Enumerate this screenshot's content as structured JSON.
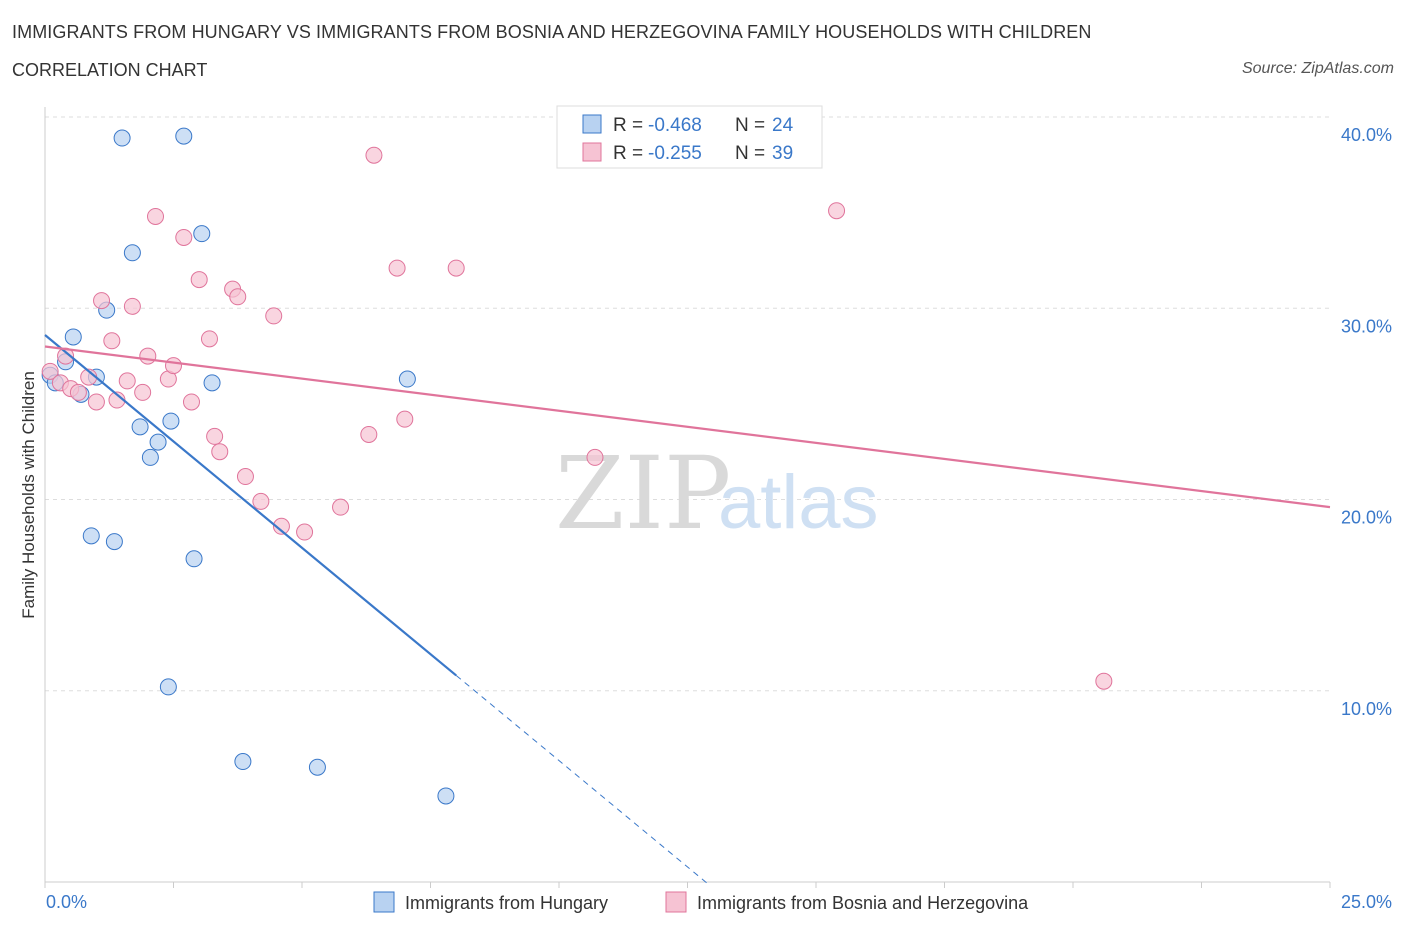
{
  "header": {
    "title": "IMMIGRANTS FROM HUNGARY VS IMMIGRANTS FROM BOSNIA AND HERZEGOVINA FAMILY HOUSEHOLDS WITH CHILDREN",
    "subtitle": "CORRELATION CHART",
    "source": "Source: ZipAtlas.com"
  },
  "watermark": {
    "zip": "ZIP",
    "atlas": "atlas"
  },
  "legend": {
    "rows": [
      {
        "r_label": "R =",
        "r_value": "-0.468",
        "n_label": "N =",
        "n_value": "24"
      },
      {
        "r_label": "R =",
        "r_value": "-0.255",
        "n_label": "N =",
        "n_value": "39"
      }
    ]
  },
  "chart_data": {
    "type": "scatter",
    "title": "IMMIGRANTS FROM HUNGARY VS IMMIGRANTS FROM BOSNIA AND HERZEGOVINA FAMILY HOUSEHOLDS WITH CHILDREN",
    "xlabel": "",
    "ylabel": "Family Households with Children",
    "xlim": [
      0,
      25
    ],
    "ylim": [
      0,
      40
    ],
    "x_tick_labels": [
      "0.0%",
      "25.0%"
    ],
    "y_ticks": [
      10,
      20,
      30,
      40
    ],
    "y_tick_labels": [
      "10.0%",
      "20.0%",
      "30.0%",
      "40.0%"
    ],
    "grid": true,
    "legend_position": "top-center",
    "series": [
      {
        "name": "Immigrants from Hungary",
        "color": "#3a78c9",
        "fill": "#b8d2f1",
        "R": -0.468,
        "N": 24,
        "points": [
          [
            0.1,
            26.5
          ],
          [
            0.2,
            26.1
          ],
          [
            0.4,
            27.2
          ],
          [
            0.55,
            28.5
          ],
          [
            0.7,
            25.5
          ],
          [
            1.0,
            26.4
          ],
          [
            1.2,
            29.9
          ],
          [
            1.5,
            38.9
          ],
          [
            1.7,
            32.9
          ],
          [
            1.85,
            23.8
          ],
          [
            2.05,
            22.2
          ],
          [
            2.2,
            23.0
          ],
          [
            2.45,
            24.1
          ],
          [
            2.7,
            39.0
          ],
          [
            3.05,
            33.9
          ],
          [
            3.25,
            26.1
          ],
          [
            0.9,
            18.1
          ],
          [
            1.35,
            17.8
          ],
          [
            2.9,
            16.9
          ],
          [
            2.4,
            10.2
          ],
          [
            3.85,
            6.3
          ],
          [
            5.3,
            6.0
          ],
          [
            7.05,
            26.3
          ],
          [
            7.8,
            4.5
          ]
        ],
        "trend": {
          "x0": 0,
          "y0": 28.6,
          "x1": 8.0,
          "y1": 10.8,
          "dash_to_x": 12.9
        }
      },
      {
        "name": "Immigrants from Bosnia and Herzegovina",
        "color": "#e0749b",
        "fill": "#f6c3d3",
        "R": -0.255,
        "N": 39,
        "points": [
          [
            0.1,
            26.7
          ],
          [
            0.3,
            26.1
          ],
          [
            0.4,
            27.5
          ],
          [
            0.5,
            25.8
          ],
          [
            0.65,
            25.6
          ],
          [
            0.85,
            26.4
          ],
          [
            1.0,
            25.1
          ],
          [
            1.1,
            30.4
          ],
          [
            1.3,
            28.3
          ],
          [
            1.4,
            25.2
          ],
          [
            1.6,
            26.2
          ],
          [
            1.7,
            30.1
          ],
          [
            1.9,
            25.6
          ],
          [
            2.0,
            27.5
          ],
          [
            2.15,
            34.8
          ],
          [
            2.4,
            26.3
          ],
          [
            2.5,
            27.0
          ],
          [
            2.7,
            33.7
          ],
          [
            2.85,
            25.1
          ],
          [
            3.0,
            31.5
          ],
          [
            3.2,
            28.4
          ],
          [
            3.3,
            23.3
          ],
          [
            3.4,
            22.5
          ],
          [
            3.65,
            31.0
          ],
          [
            3.75,
            30.6
          ],
          [
            3.9,
            21.2
          ],
          [
            4.2,
            19.9
          ],
          [
            4.45,
            29.6
          ],
          [
            4.6,
            18.6
          ],
          [
            5.05,
            18.3
          ],
          [
            5.75,
            19.6
          ],
          [
            6.3,
            23.4
          ],
          [
            6.4,
            38.0
          ],
          [
            6.85,
            32.1
          ],
          [
            7.0,
            24.2
          ],
          [
            8.0,
            32.1
          ],
          [
            10.7,
            22.2
          ],
          [
            15.4,
            35.1
          ],
          [
            20.6,
            10.5
          ]
        ],
        "trend": {
          "x0": 0,
          "y0": 28.0,
          "x1": 25,
          "y1": 19.6
        }
      }
    ]
  }
}
